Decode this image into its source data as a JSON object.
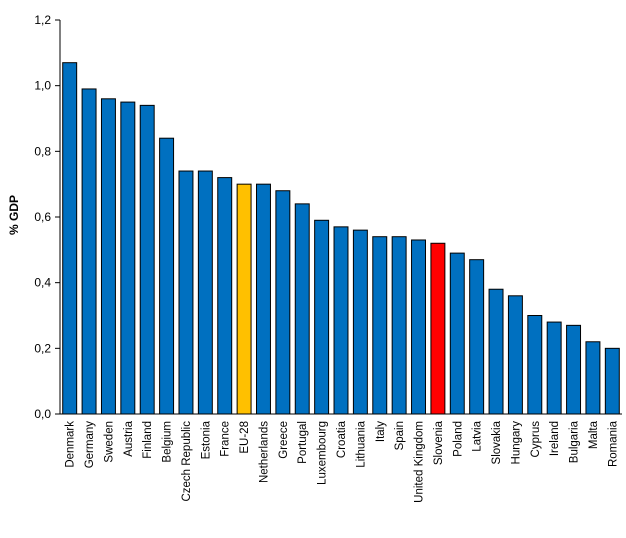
{
  "chart_data": {
    "type": "bar",
    "title": "",
    "xlabel": "",
    "ylabel": "% GDP",
    "ylim": [
      0,
      1.2
    ],
    "yticks": [
      "0,0",
      "0,2",
      "0,4",
      "0,6",
      "0,8",
      "1,0",
      "1,2"
    ],
    "grid": false,
    "legend": "none",
    "categories": [
      "Denmark",
      "Germany",
      "Sweden",
      "Austria",
      "Finland",
      "Belgium",
      "Czech Republic",
      "Estonia",
      "France",
      "EU-28",
      "Netherlands",
      "Greece",
      "Portugal",
      "Luxembourg",
      "Croatia",
      "Lithuania",
      "Italy",
      "Spain",
      "United Kingdom",
      "Slovenia",
      "Poland",
      "Latvia",
      "Slovakia",
      "Hungary",
      "Cyprus",
      "Ireland",
      "Bulgaria",
      "Malta",
      "Romania"
    ],
    "values": [
      1.07,
      0.99,
      0.96,
      0.95,
      0.94,
      0.84,
      0.74,
      0.74,
      0.72,
      0.7,
      0.7,
      0.68,
      0.64,
      0.59,
      0.57,
      0.56,
      0.54,
      0.54,
      0.53,
      0.52,
      0.49,
      0.47,
      0.38,
      0.36,
      0.3,
      0.28,
      0.27,
      0.22,
      0.2
    ],
    "colors": {
      "default": "#0070C0",
      "highlight_eu": "#FFC000",
      "highlight_si": "#FF0000",
      "edge": "#000000"
    },
    "highlights": {
      "EU-28": "highlight_eu",
      "Slovenia": "highlight_si"
    }
  }
}
